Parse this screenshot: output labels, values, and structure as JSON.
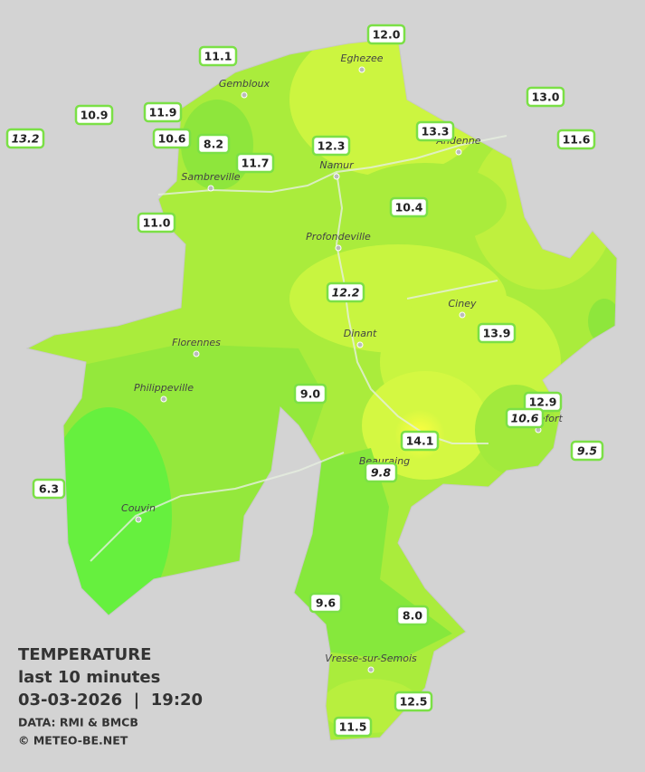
{
  "legend": {
    "title": "TEMPERATURE",
    "subtitle": "last 10 minutes",
    "datetime": "03-03-2026  |  19:20",
    "source": "DATA: RMI & BMCB",
    "credit": "© METEO-BE.NET"
  },
  "cities": [
    "Eghezee",
    "Gembloux",
    "Andenne",
    "Namur",
    "Sambreville",
    "Profondeville",
    "Ciney",
    "Dinant",
    "Florennes",
    "Philippeville",
    "Rochefort",
    "Beauraing",
    "Couvin",
    "Vresse-sur-Semois"
  ],
  "stations": [
    {
      "text": "12.0",
      "italic": false
    },
    {
      "text": "11.1",
      "italic": false
    },
    {
      "text": "13.0",
      "italic": false
    },
    {
      "text": "10.9",
      "italic": false
    },
    {
      "text": "11.9",
      "italic": false
    },
    {
      "text": "13.2",
      "italic": true
    },
    {
      "text": "10.6",
      "italic": false
    },
    {
      "text": "8.2",
      "italic": false
    },
    {
      "text": "12.3",
      "italic": false
    },
    {
      "text": "13.3",
      "italic": false
    },
    {
      "text": "11.6",
      "italic": false
    },
    {
      "text": "11.7",
      "italic": false
    },
    {
      "text": "10.4",
      "italic": false
    },
    {
      "text": "11.0",
      "italic": false
    },
    {
      "text": "12.2",
      "italic": true
    },
    {
      "text": "13.9",
      "italic": false
    },
    {
      "text": "9.0",
      "italic": false
    },
    {
      "text": "12.9",
      "italic": false
    },
    {
      "text": "10.6",
      "italic": true
    },
    {
      "text": "9.5",
      "italic": true
    },
    {
      "text": "14.1",
      "italic": false
    },
    {
      "text": "9.8",
      "italic": true
    },
    {
      "text": "6.3",
      "italic": false
    },
    {
      "text": "9.6",
      "italic": false
    },
    {
      "text": "8.0",
      "italic": false
    },
    {
      "text": "12.5",
      "italic": false
    },
    {
      "text": "11.5",
      "italic": false
    }
  ]
}
